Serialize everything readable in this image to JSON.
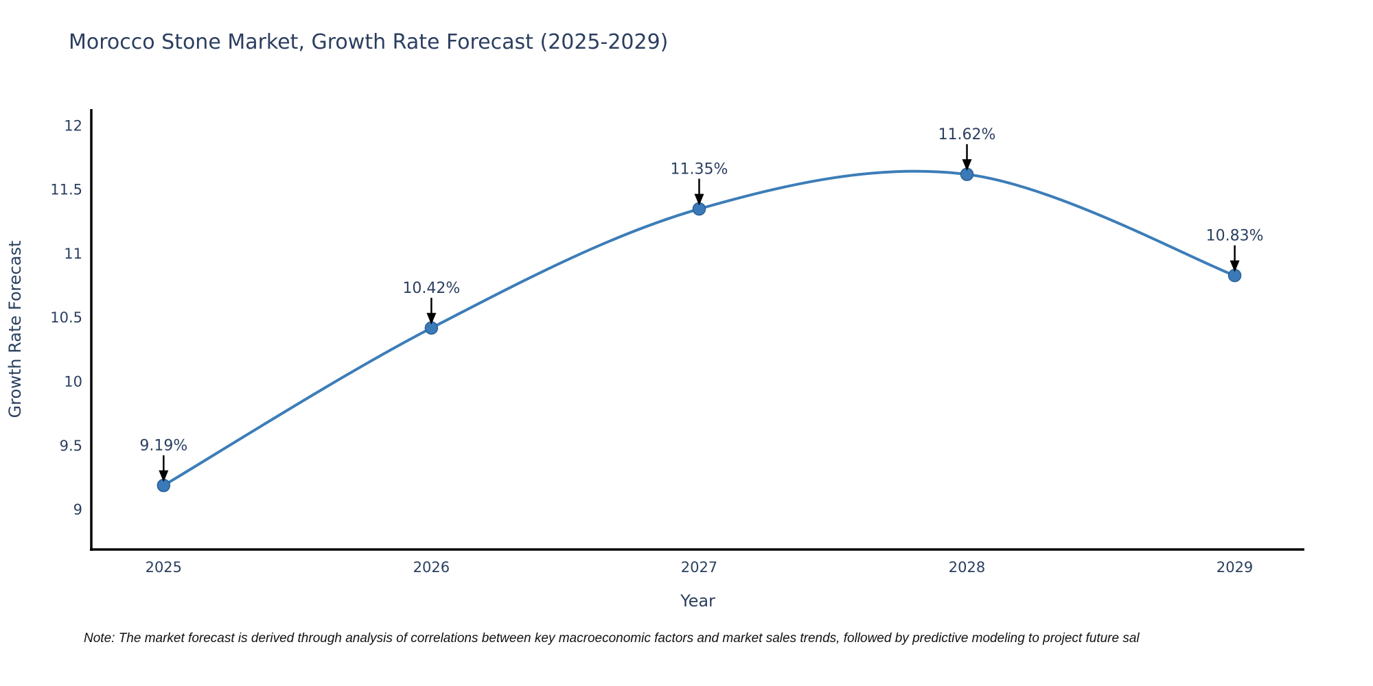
{
  "title": "Morocco Stone Market, Growth Rate Forecast (2025-2029)",
  "note": {
    "text": "Note: The market forecast is derived through analysis of correlations between key macroeconomic factors and market sales trends, followed by predictive modeling to project future sal"
  },
  "chart_data": {
    "type": "line",
    "line_shape": "spline",
    "title": "Morocco Stone Market, Growth Rate Forecast (2025-2029)",
    "xlabel": "Year",
    "ylabel": "Growth Rate Forecast",
    "x": [
      2025,
      2026,
      2027,
      2028,
      2029
    ],
    "series": [
      {
        "name": "Growth Rate Forecast",
        "values": [
          9.19,
          10.42,
          11.35,
          11.62,
          10.83
        ]
      }
    ],
    "point_labels": [
      "9.19%",
      "10.42%",
      "11.35%",
      "11.62%",
      "10.83%"
    ],
    "xticks": [
      2025,
      2026,
      2027,
      2028,
      2029
    ],
    "xtick_labels": [
      "2025",
      "2026",
      "2027",
      "2028",
      "2029"
    ],
    "yticks": [
      9,
      9.5,
      10,
      10.5,
      11,
      11.5,
      12
    ],
    "ytick_labels": [
      "9",
      "9.5",
      "10",
      "10.5",
      "11",
      "11.5",
      "12"
    ],
    "xlim": [
      2024.73,
      2029.26
    ],
    "ylim": [
      8.69,
      12.13
    ],
    "grid": false,
    "legend": "none",
    "markers": true,
    "annotations_with_arrows": true,
    "colors": {
      "line": "#3c7db8",
      "marker_fill": "#3b7ab8",
      "marker_stroke": "#2a5f94",
      "axis_line": "#000000",
      "tick_text": "#2a3f5f",
      "axis_title_text": "#2a3f5f",
      "title_text": "#2c3e5f",
      "annotation_text": "#2a3f5f",
      "annotation_arrow": "#000000",
      "note_text": "#111111",
      "background": "#ffffff"
    }
  }
}
